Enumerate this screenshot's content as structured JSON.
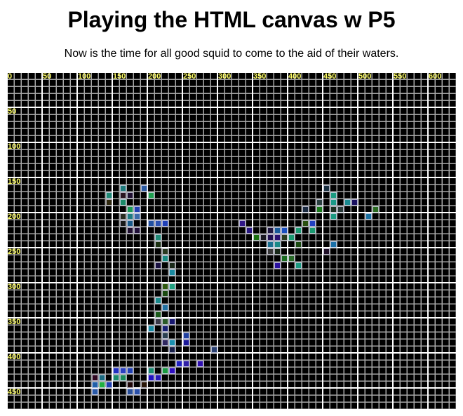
{
  "title": "Playing the HTML canvas w P5",
  "subtitle": "Now is the time for all good squid to come to the aid of their waters.",
  "canvas": {
    "background": "#000000",
    "grid_step": 10,
    "grid_major_step": 50,
    "label_color": "#ffff66",
    "x_labels": [
      "0",
      "50",
      "100",
      "150",
      "200",
      "250",
      "300",
      "350",
      "400",
      "450",
      "500",
      "550",
      "600"
    ],
    "y_labels": [
      "50",
      "100",
      "150",
      "200",
      "250",
      "300",
      "350",
      "400",
      "450"
    ],
    "cells": [
      [
        160,
        160,
        "#1e7a7a"
      ],
      [
        190,
        160,
        "#2a5aa0"
      ],
      [
        140,
        170,
        "#1f8a75"
      ],
      [
        160,
        170,
        "#2a1420"
      ],
      [
        170,
        170,
        "#201030"
      ],
      [
        200,
        170,
        "#20a050"
      ],
      [
        140,
        180,
        "#302a10"
      ],
      [
        160,
        180,
        "#1a8a68"
      ],
      [
        170,
        190,
        "#1a9a55"
      ],
      [
        180,
        190,
        "#2040b0"
      ],
      [
        160,
        200,
        "#282c20"
      ],
      [
        170,
        200,
        "#1e7a80"
      ],
      [
        180,
        200,
        "#3a6aa8"
      ],
      [
        160,
        210,
        "#181818"
      ],
      [
        170,
        210,
        "#1a5a88"
      ],
      [
        200,
        210,
        "#2050a0"
      ],
      [
        210,
        210,
        "#2a50b0"
      ],
      [
        220,
        210,
        "#2040b8"
      ],
      [
        170,
        220,
        "#201030"
      ],
      [
        180,
        220,
        "#201038"
      ],
      [
        210,
        230,
        "#1f8a75"
      ],
      [
        210,
        240,
        "#1a3010"
      ],
      [
        220,
        250,
        "#2a3a20"
      ],
      [
        220,
        260,
        "#1a8a80"
      ],
      [
        210,
        270,
        "#181040"
      ],
      [
        230,
        270,
        "#1a2a1a"
      ],
      [
        230,
        280,
        "#1a8aa0"
      ],
      [
        220,
        300,
        "#305a10"
      ],
      [
        230,
        300,
        "#20a080"
      ],
      [
        220,
        310,
        "#1a4a10"
      ],
      [
        210,
        320,
        "#1a8a8a"
      ],
      [
        220,
        330,
        "#2070a0"
      ],
      [
        210,
        340,
        "#1a5a18"
      ],
      [
        210,
        350,
        "#3a3a48"
      ],
      [
        220,
        350,
        "#2a5a28"
      ],
      [
        230,
        350,
        "#181870"
      ],
      [
        200,
        360,
        "#1a8aa0"
      ],
      [
        220,
        360,
        "#182070"
      ],
      [
        220,
        370,
        "#2a4050"
      ],
      [
        250,
        370,
        "#2040a0"
      ],
      [
        220,
        380,
        "#302860"
      ],
      [
        230,
        380,
        "#1a90b0"
      ],
      [
        250,
        380,
        "#1a1898"
      ],
      [
        230,
        390,
        "#182048"
      ],
      [
        290,
        390,
        "#2a4070"
      ],
      [
        240,
        410,
        "#2020c0"
      ],
      [
        250,
        410,
        "#3020a8"
      ],
      [
        270,
        410,
        "#3010b0"
      ],
      [
        150,
        420,
        "#2030c0"
      ],
      [
        160,
        420,
        "#2a40c0"
      ],
      [
        170,
        420,
        "#2040b0"
      ],
      [
        200,
        420,
        "#1a8a70"
      ],
      [
        220,
        420,
        "#1a9a40"
      ],
      [
        230,
        420,
        "#3010c0"
      ],
      [
        120,
        430,
        "#300820"
      ],
      [
        130,
        430,
        "#1a6a80"
      ],
      [
        150,
        430,
        "#1a8a6a"
      ],
      [
        160,
        430,
        "#1a8a5a"
      ],
      [
        200,
        430,
        "#2010c0"
      ],
      [
        210,
        430,
        "#2818b8"
      ],
      [
        120,
        440,
        "#2060a8"
      ],
      [
        130,
        440,
        "#20b040"
      ],
      [
        140,
        440,
        "#2040b0"
      ],
      [
        170,
        440,
        "#200808"
      ],
      [
        190,
        440,
        "#2a1808"
      ],
      [
        120,
        450,
        "#2a5aa8"
      ],
      [
        170,
        450,
        "#2a5098"
      ],
      [
        180,
        450,
        "#2a50a8"
      ],
      [
        450,
        160,
        "#1a3040"
      ],
      [
        460,
        170,
        "#1a9a80"
      ],
      [
        440,
        180,
        "#2a4040"
      ],
      [
        460,
        180,
        "#1a9a88"
      ],
      [
        480,
        180,
        "#1a8a90"
      ],
      [
        490,
        180,
        "#1a1060"
      ],
      [
        420,
        190,
        "#1a2a40"
      ],
      [
        440,
        190,
        "#1a7a1a"
      ],
      [
        460,
        190,
        "#1a3020"
      ],
      [
        470,
        190,
        "#2a3a38"
      ],
      [
        520,
        190,
        "#2a6a20"
      ],
      [
        460,
        200,
        "#1a9a80"
      ],
      [
        510,
        200,
        "#1a70a0"
      ],
      [
        330,
        210,
        "#301888"
      ],
      [
        420,
        210,
        "#2a5010"
      ],
      [
        430,
        210,
        "#2040c0"
      ],
      [
        340,
        220,
        "#281880"
      ],
      [
        370,
        220,
        "#201840"
      ],
      [
        380,
        220,
        "#1a5a98"
      ],
      [
        390,
        220,
        "#1a50c0"
      ],
      [
        410,
        220,
        "#1a9a70"
      ],
      [
        430,
        220,
        "#1a9a70"
      ],
      [
        350,
        230,
        "#1a7010"
      ],
      [
        360,
        230,
        "#181820"
      ],
      [
        370,
        230,
        "#201050"
      ],
      [
        380,
        230,
        "#2a1070"
      ],
      [
        390,
        230,
        "#2a3a20"
      ],
      [
        400,
        230,
        "#1a9a70"
      ],
      [
        370,
        240,
        "#1a7090"
      ],
      [
        380,
        240,
        "#1a8a88"
      ],
      [
        410,
        240,
        "#1a4a10"
      ],
      [
        460,
        240,
        "#1a70a8"
      ],
      [
        370,
        250,
        "#3a3a3a"
      ],
      [
        380,
        250,
        "#182818"
      ],
      [
        450,
        250,
        "#201028"
      ],
      [
        390,
        260,
        "#1a6a20"
      ],
      [
        400,
        260,
        "#2a6a2a"
      ],
      [
        380,
        270,
        "#2a10a0"
      ],
      [
        410,
        270,
        "#1a9a80"
      ]
    ]
  }
}
